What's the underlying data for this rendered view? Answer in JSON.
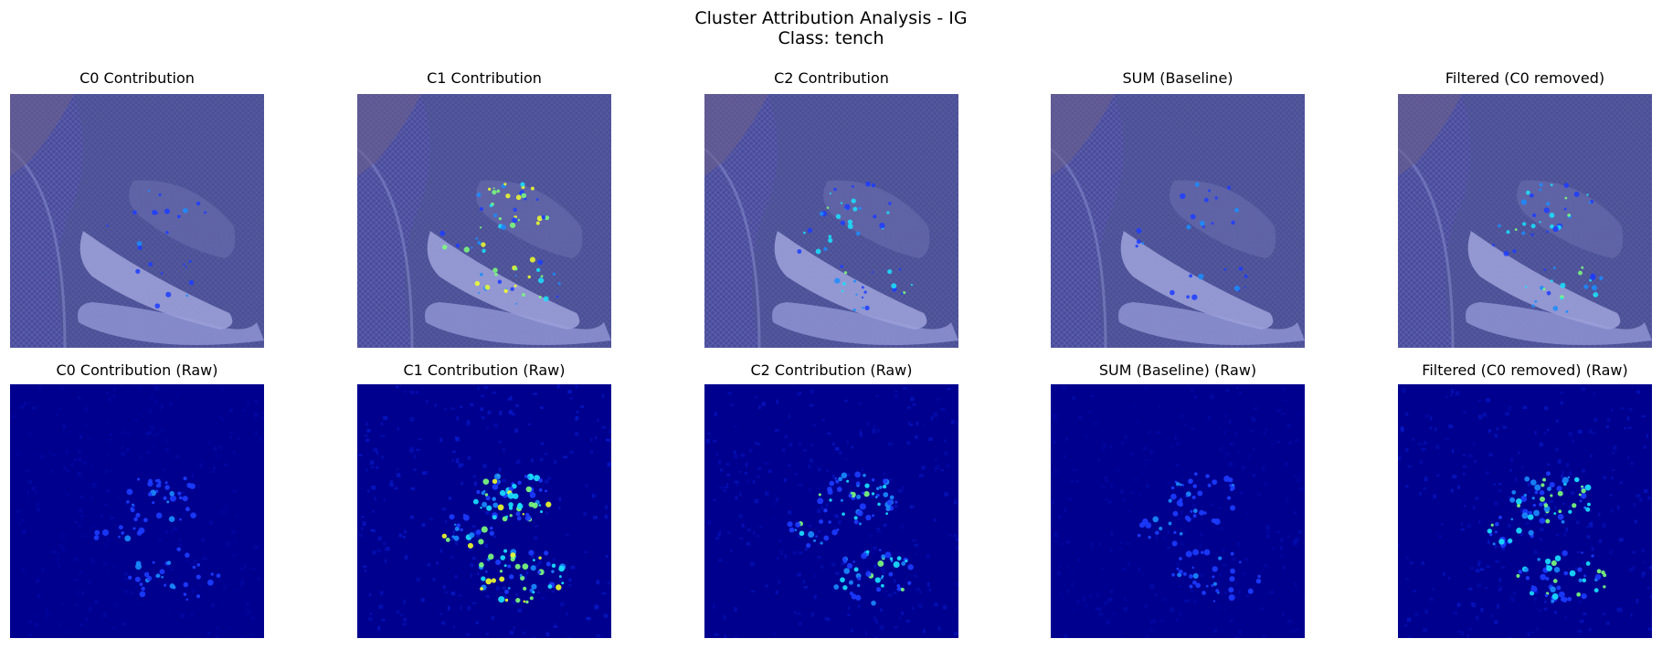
{
  "figure": {
    "title_line1": "Cluster Attribution Analysis - IG",
    "title_line2": "Class: tench"
  },
  "top_row": [
    {
      "title": "C0 Contribution",
      "intensity": 0.35
    },
    {
      "title": "C1 Contribution",
      "intensity": 1.0
    },
    {
      "title": "C2 Contribution",
      "intensity": 0.75
    },
    {
      "title": "SUM (Baseline)",
      "intensity": 0.4
    },
    {
      "title": "Filtered (C0 removed)",
      "intensity": 0.85
    }
  ],
  "bottom_row": [
    {
      "title": "C0 Contribution (Raw)",
      "intensity": 0.35
    },
    {
      "title": "C1 Contribution (Raw)",
      "intensity": 1.0
    },
    {
      "title": "C2 Contribution (Raw)",
      "intensity": 0.75
    },
    {
      "title": "SUM (Baseline) (Raw)",
      "intensity": 0.4
    },
    {
      "title": "Filtered (C0 removed) (Raw)",
      "intensity": 0.85
    }
  ],
  "colors": {
    "raw_background": "#00008f",
    "overlay_tint": "#4a4c9c",
    "hot_spot": "#e8ff3a"
  }
}
